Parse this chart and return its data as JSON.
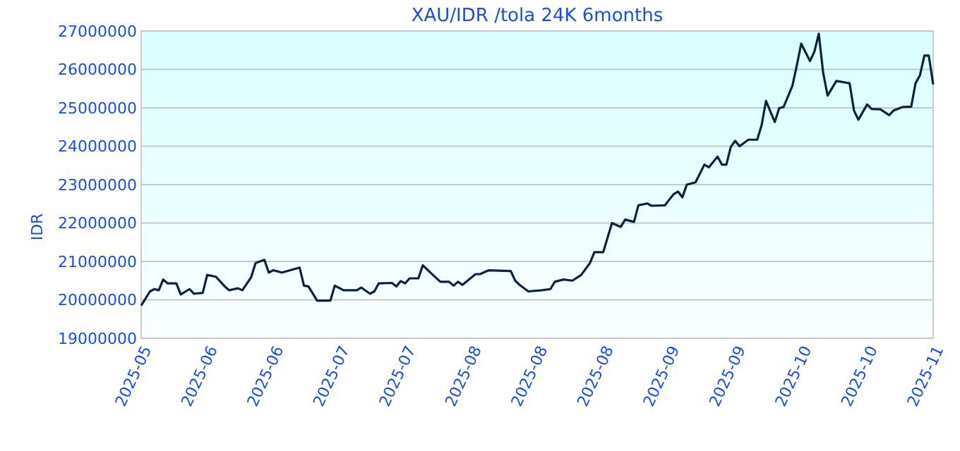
{
  "chart_data": {
    "type": "line",
    "title": "XAU/IDR /tola 24K 6months",
    "ylabel": "IDR",
    "xlim": [
      "2025-05-18",
      "2025-11-14"
    ],
    "xticks": [
      {
        "value": "2025-05-18",
        "label": "2025-05"
      },
      {
        "value": "2025-06-02",
        "label": "2025-06"
      },
      {
        "value": "2025-06-17",
        "label": "2025-06"
      },
      {
        "value": "2025-07-02",
        "label": "2025-07"
      },
      {
        "value": "2025-07-17",
        "label": "2025-07"
      },
      {
        "value": "2025-08-01",
        "label": "2025-08"
      },
      {
        "value": "2025-08-16",
        "label": "2025-08"
      },
      {
        "value": "2025-08-31",
        "label": "2025-08"
      },
      {
        "value": "2025-09-15",
        "label": "2025-09"
      },
      {
        "value": "2025-09-30",
        "label": "2025-09"
      },
      {
        "value": "2025-10-15",
        "label": "2025-10"
      },
      {
        "value": "2025-10-30",
        "label": "2025-10"
      },
      {
        "value": "2025-11-14",
        "label": "2025-11"
      }
    ],
    "ylim": [
      19000000,
      27000000
    ],
    "yticks": [
      19000000,
      20000000,
      21000000,
      22000000,
      23000000,
      24000000,
      25000000,
      26000000,
      27000000
    ],
    "grid": "y",
    "marker": "none",
    "line_style": "solid",
    "x": [
      "2025-05-18",
      "2025-05-20",
      "2025-05-21",
      "2025-05-22",
      "2025-05-23",
      "2025-05-24",
      "2025-05-26",
      "2025-05-27",
      "2025-05-29",
      "2025-05-30",
      "2025-06-01",
      "2025-06-02",
      "2025-06-04",
      "2025-06-06",
      "2025-06-07",
      "2025-06-09",
      "2025-06-10",
      "2025-06-12",
      "2025-06-13",
      "2025-06-15",
      "2025-06-16",
      "2025-06-17",
      "2025-06-19",
      "2025-06-23",
      "2025-06-24",
      "2025-06-25",
      "2025-06-27",
      "2025-06-30",
      "2025-07-01",
      "2025-07-03",
      "2025-07-06",
      "2025-07-07",
      "2025-07-09",
      "2025-07-10",
      "2025-07-11",
      "2025-07-14",
      "2025-07-15",
      "2025-07-16",
      "2025-07-17",
      "2025-07-18",
      "2025-07-20",
      "2025-07-21",
      "2025-07-23",
      "2025-07-25",
      "2025-07-27",
      "2025-07-28",
      "2025-07-29",
      "2025-07-30",
      "2025-08-02",
      "2025-08-03",
      "2025-08-05",
      "2025-08-10",
      "2025-08-11",
      "2025-08-12",
      "2025-08-14",
      "2025-08-17",
      "2025-08-19",
      "2025-08-20",
      "2025-08-22",
      "2025-08-24",
      "2025-08-26",
      "2025-08-28",
      "2025-08-29",
      "2025-08-31",
      "2025-09-02",
      "2025-09-04",
      "2025-09-05",
      "2025-09-07",
      "2025-09-08",
      "2025-09-10",
      "2025-09-11",
      "2025-09-14",
      "2025-09-16",
      "2025-09-17",
      "2025-09-18",
      "2025-09-19",
      "2025-09-21",
      "2025-09-23",
      "2025-09-24",
      "2025-09-26",
      "2025-09-27",
      "2025-09-28",
      "2025-09-29",
      "2025-09-30",
      "2025-10-01",
      "2025-10-03",
      "2025-10-05",
      "2025-10-06",
      "2025-10-07",
      "2025-10-09",
      "2025-10-10",
      "2025-10-11",
      "2025-10-13",
      "2025-10-14",
      "2025-10-15",
      "2025-10-17",
      "2025-10-18",
      "2025-10-19",
      "2025-10-20",
      "2025-10-21",
      "2025-10-23",
      "2025-10-26",
      "2025-10-27",
      "2025-10-28",
      "2025-10-30",
      "2025-10-31",
      "2025-11-02",
      "2025-11-04",
      "2025-11-05",
      "2025-11-07",
      "2025-11-09",
      "2025-11-10",
      "2025-11-11",
      "2025-11-12",
      "2025-11-13",
      "2025-11-14"
    ],
    "series": [
      {
        "color": "#0d2240",
        "values": [
          19850000,
          20220000,
          20280000,
          20250000,
          20530000,
          20430000,
          20430000,
          20140000,
          20280000,
          20160000,
          20180000,
          20650000,
          20600000,
          20350000,
          20250000,
          20300000,
          20250000,
          20590000,
          20960000,
          21040000,
          20710000,
          20770000,
          20710000,
          20840000,
          20370000,
          20350000,
          19980000,
          19980000,
          20370000,
          20250000,
          20250000,
          20320000,
          20160000,
          20220000,
          20430000,
          20440000,
          20350000,
          20490000,
          20430000,
          20560000,
          20560000,
          20900000,
          20680000,
          20470000,
          20470000,
          20370000,
          20470000,
          20390000,
          20670000,
          20670000,
          20770000,
          20750000,
          20500000,
          20390000,
          20220000,
          20250000,
          20280000,
          20470000,
          20530000,
          20500000,
          20650000,
          20960000,
          21240000,
          21240000,
          22000000,
          21900000,
          22090000,
          22030000,
          22460000,
          22510000,
          22450000,
          22460000,
          22750000,
          22820000,
          22670000,
          23000000,
          23060000,
          23520000,
          23450000,
          23730000,
          23520000,
          23520000,
          23980000,
          24140000,
          24000000,
          24170000,
          24170000,
          24540000,
          25180000,
          24630000,
          24990000,
          25020000,
          25570000,
          26100000,
          26670000,
          26220000,
          26460000,
          26930000,
          25910000,
          25320000,
          25700000,
          25640000,
          24930000,
          24690000,
          25090000,
          24970000,
          24960000,
          24810000,
          24930000,
          25020000,
          25030000,
          25640000,
          25850000,
          26360000,
          26360000,
          25610000
        ]
      }
    ]
  }
}
